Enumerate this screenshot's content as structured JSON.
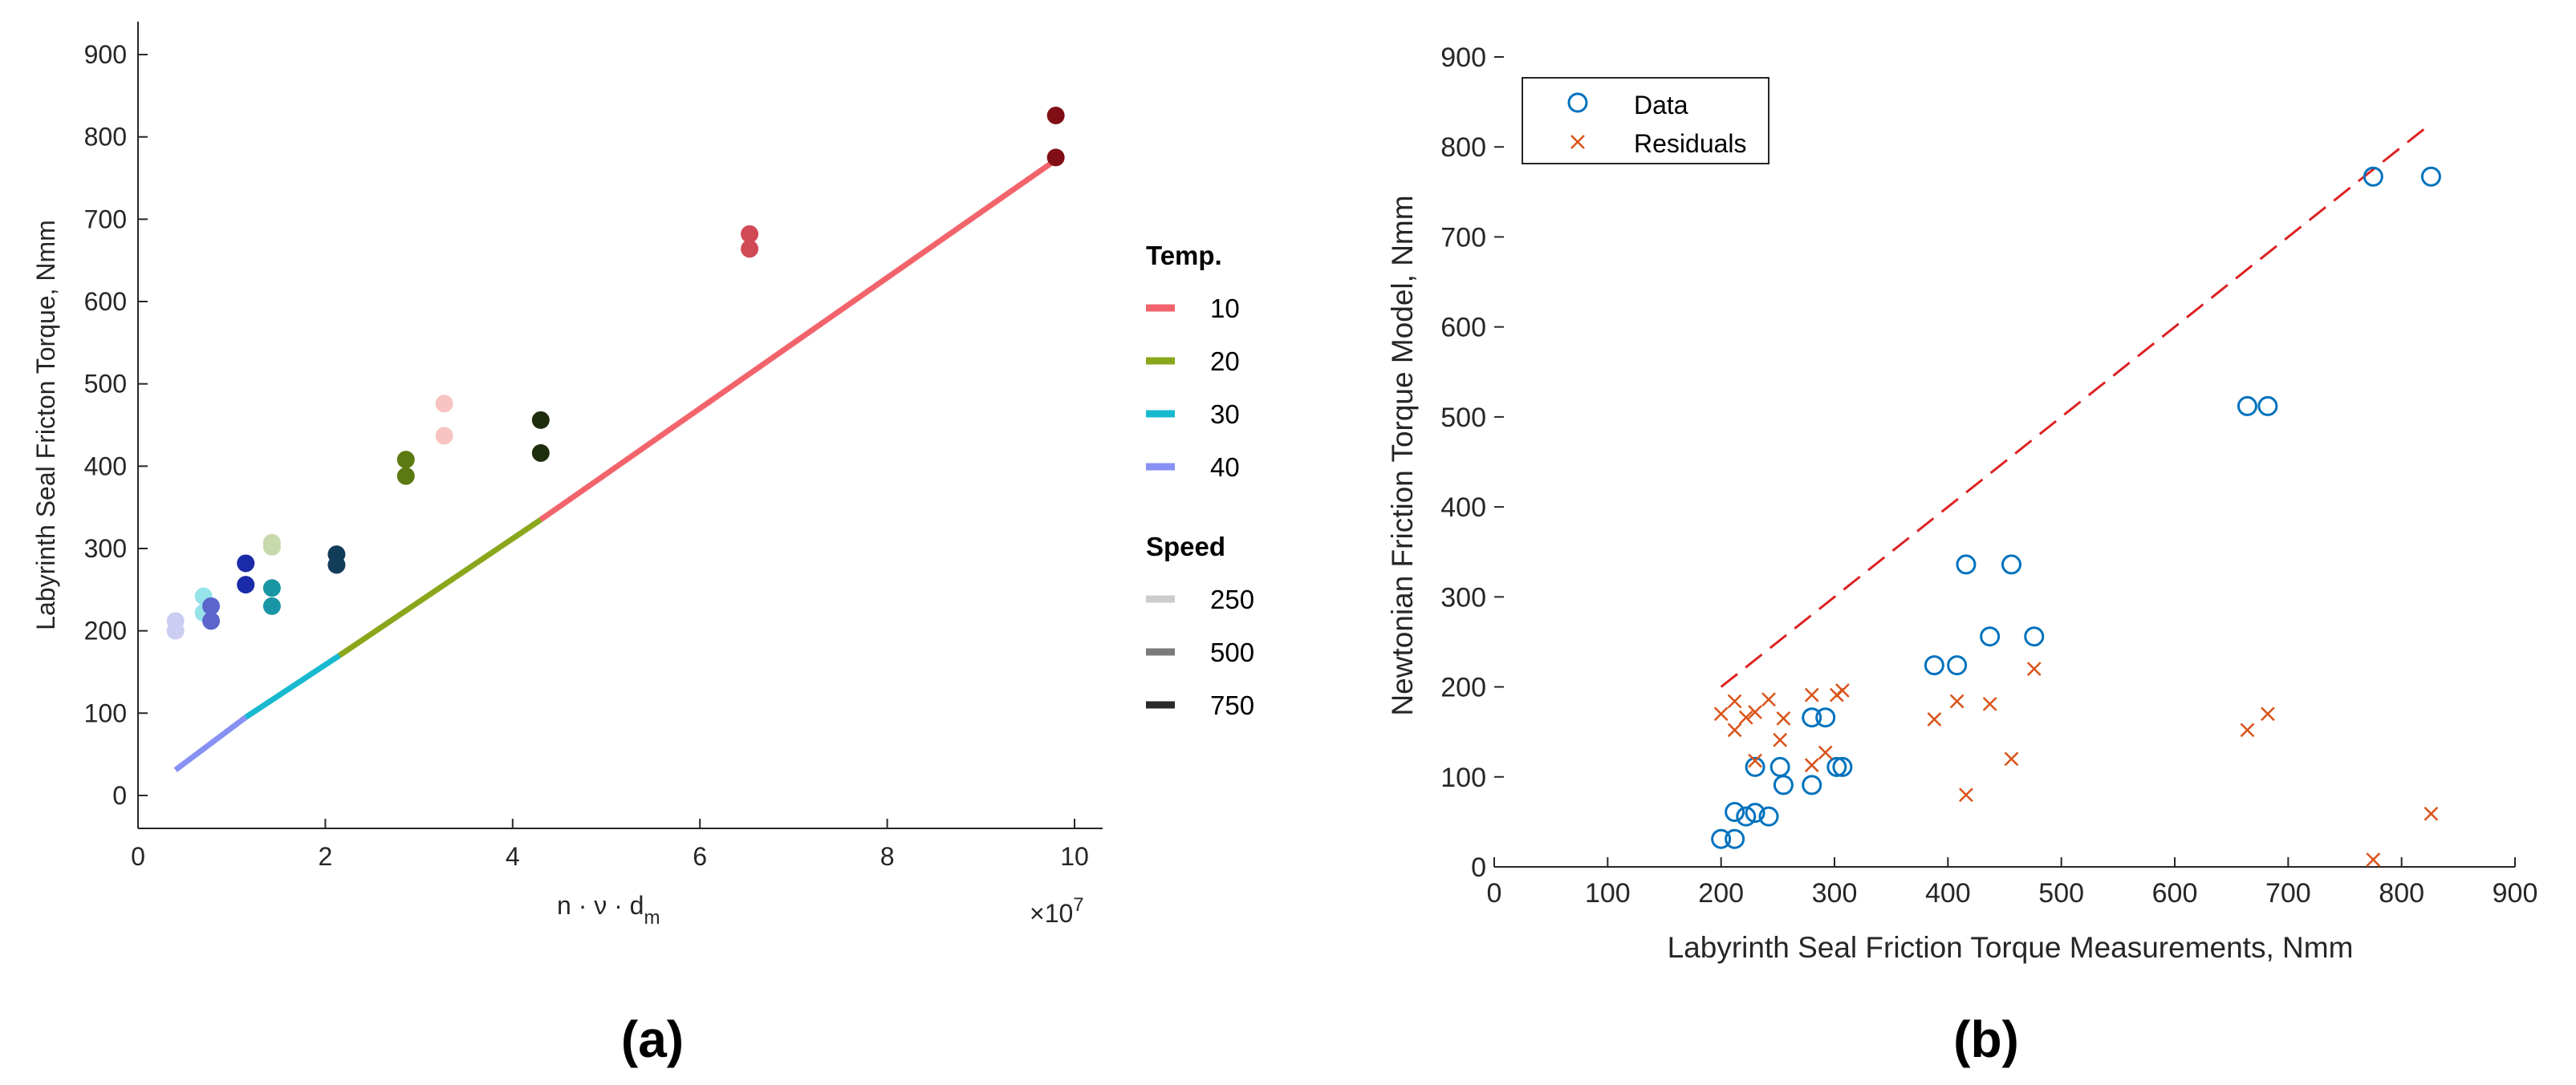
{
  "chart_data": [
    {
      "type": "scatter",
      "panel_label": "(a)",
      "xlabel": "n · ν · d",
      "xlabel_sub": "m",
      "ylabel": "Labyrinth Seal Fricton Torque, Nmm",
      "xlim": [
        0,
        10.3
      ],
      "ylim": [
        -40,
        940
      ],
      "xticks": [
        0,
        2,
        4,
        6,
        8,
        10
      ],
      "yticks": [
        0,
        100,
        200,
        300,
        400,
        500,
        600,
        700,
        800,
        900
      ],
      "x_exponent": "×10",
      "x_exponent_power": "7",
      "legend": {
        "temp_title": "Temp.",
        "temp": [
          {
            "label": "10",
            "color": "#f2646c"
          },
          {
            "label": "20",
            "color": "#8aa71c"
          },
          {
            "label": "30",
            "color": "#17b9cf"
          },
          {
            "label": "40",
            "color": "#8790f3"
          }
        ],
        "speed_title": "Speed",
        "speed": [
          {
            "label": "250",
            "color": "#cccccc"
          },
          {
            "label": "500",
            "color": "#7a7a7a"
          },
          {
            "label": "750",
            "color": "#2a2a2a"
          }
        ]
      },
      "line_segments": [
        {
          "temp": "40",
          "color": "#8790f3",
          "x": [
            0.4,
            1.15
          ],
          "y": [
            31,
            95
          ]
        },
        {
          "temp": "30",
          "color": "#17b9cf",
          "x": [
            1.15,
            2.15
          ],
          "y": [
            95,
            170
          ]
        },
        {
          "temp": "20",
          "color": "#8aa71c",
          "x": [
            2.15,
            4.3
          ],
          "y": [
            170,
            335
          ]
        },
        {
          "temp": "10",
          "color": "#f2646c",
          "x": [
            4.3,
            9.8
          ],
          "y": [
            335,
            772
          ]
        }
      ],
      "points": [
        {
          "x": 0.4,
          "y": 212,
          "color": "#cccdf3"
        },
        {
          "x": 0.4,
          "y": 200,
          "color": "#cccdf3"
        },
        {
          "x": 0.7,
          "y": 242,
          "color": "#95e4ea"
        },
        {
          "x": 0.7,
          "y": 222,
          "color": "#95e4ea"
        },
        {
          "x": 0.78,
          "y": 230,
          "color": "#5b65cc"
        },
        {
          "x": 0.78,
          "y": 212,
          "color": "#5b65cc"
        },
        {
          "x": 1.15,
          "y": 282,
          "color": "#1a2aa8"
        },
        {
          "x": 1.15,
          "y": 256,
          "color": "#1a2aa8"
        },
        {
          "x": 1.43,
          "y": 307,
          "color": "#c9d9ae"
        },
        {
          "x": 1.43,
          "y": 302,
          "color": "#c9d9ae"
        },
        {
          "x": 1.43,
          "y": 252,
          "color": "#1a95a6"
        },
        {
          "x": 1.43,
          "y": 230,
          "color": "#1a95a6"
        },
        {
          "x": 2.12,
          "y": 293,
          "color": "#123d59"
        },
        {
          "x": 2.12,
          "y": 280,
          "color": "#123d59"
        },
        {
          "x": 2.86,
          "y": 408,
          "color": "#5c7a12"
        },
        {
          "x": 2.86,
          "y": 388,
          "color": "#5c7a12"
        },
        {
          "x": 3.27,
          "y": 476,
          "color": "#f8c3c3"
        },
        {
          "x": 3.27,
          "y": 437,
          "color": "#f8c3c3"
        },
        {
          "x": 4.3,
          "y": 456,
          "color": "#1e2e0c"
        },
        {
          "x": 4.3,
          "y": 416,
          "color": "#1e2e0c"
        },
        {
          "x": 6.53,
          "y": 682,
          "color": "#cf4a55"
        },
        {
          "x": 6.53,
          "y": 664,
          "color": "#cf4a55"
        },
        {
          "x": 9.8,
          "y": 826,
          "color": "#800e14"
        },
        {
          "x": 9.8,
          "y": 775,
          "color": "#800e14"
        }
      ]
    },
    {
      "type": "scatter",
      "panel_label": "(b)",
      "xlabel": "Labyrinth Seal Friction Torque Measurements, Nmm",
      "ylabel": "Newtonian Friction Torque Model, Nmm",
      "xlim": [
        0,
        900
      ],
      "ylim": [
        0,
        900
      ],
      "xticks": [
        0,
        100,
        200,
        300,
        400,
        500,
        600,
        700,
        800,
        900
      ],
      "yticks": [
        0,
        100,
        200,
        300,
        400,
        500,
        600,
        700,
        800,
        900
      ],
      "legend": {
        "data_label": "Data",
        "residuals_label": "Residuals",
        "data_color": "#0072bd",
        "residuals_color": "#d95319"
      },
      "reference_line": {
        "x": [
          200,
          826
        ],
        "y": [
          200,
          826
        ],
        "color": "#dd2222",
        "style": "dashed"
      },
      "data": {
        "x": [
          200,
          212,
          212,
          222,
          230,
          230,
          242,
          252,
          255,
          280,
          280,
          292,
          302,
          307,
          388,
          408,
          416,
          437,
          456,
          476,
          664,
          682,
          775,
          826
        ],
        "y": [
          31,
          31,
          61,
          56,
          60,
          111,
          56,
          111,
          91,
          91,
          166,
          166,
          111,
          111,
          224,
          224,
          336,
          256,
          336,
          256,
          512,
          512,
          767,
          767
        ]
      },
      "residuals": {
        "x": [
          200,
          212,
          212,
          222,
          230,
          230,
          242,
          252,
          255,
          280,
          280,
          292,
          302,
          307,
          388,
          408,
          416,
          437,
          456,
          476,
          664,
          682,
          775,
          826
        ],
        "y": [
          170,
          152,
          184,
          166,
          118,
          172,
          186,
          141,
          165,
          113,
          191,
          127,
          191,
          196,
          164,
          184,
          80,
          181,
          120,
          220,
          152,
          170,
          8,
          59
        ]
      }
    }
  ]
}
